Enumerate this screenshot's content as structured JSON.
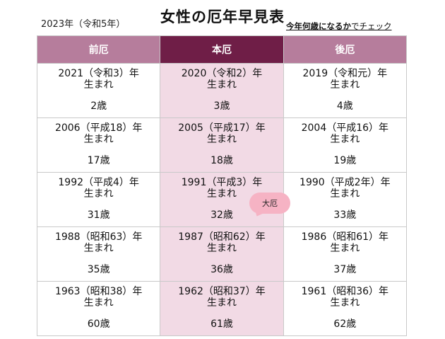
{
  "header": {
    "year_note": "2023年（令和5年）",
    "title": "女性の厄年早見表",
    "subtitle_bold": "今年何歳になるか",
    "subtitle_light": "でチェック"
  },
  "columns": [
    "前厄",
    "本厄",
    "後厄"
  ],
  "rows": [
    [
      {
        "year": "2021（令和3）年",
        "born": "生まれ",
        "age": "2歳"
      },
      {
        "year": "2020（令和2）年",
        "born": "生まれ",
        "age": "3歳"
      },
      {
        "year": "2019（令和元）年",
        "born": "生まれ",
        "age": "4歳"
      }
    ],
    [
      {
        "year": "2006（平成18）年",
        "born": "生まれ",
        "age": "17歳"
      },
      {
        "year": "2005（平成17）年",
        "born": "生まれ",
        "age": "18歳"
      },
      {
        "year": "2004（平成16）年",
        "born": "生まれ",
        "age": "19歳"
      }
    ],
    [
      {
        "year": "1992（平成4）年",
        "born": "生まれ",
        "age": "31歳"
      },
      {
        "year": "1991（平成3）年",
        "born": "生まれ",
        "age": "32歳"
      },
      {
        "year": "1990（平成2年）年",
        "born": "生まれ",
        "age": "33歳"
      }
    ],
    [
      {
        "year": "1988（昭和63）年",
        "born": "生まれ",
        "age": "35歳"
      },
      {
        "year": "1987（昭和62）年",
        "born": "生まれ",
        "age": "36歳"
      },
      {
        "year": "1986（昭和61）年",
        "born": "生まれ",
        "age": "37歳"
      }
    ],
    [
      {
        "year": "1963（昭和38）年",
        "born": "生まれ",
        "age": "60歳"
      },
      {
        "year": "1962（昭和37）年",
        "born": "生まれ",
        "age": "61歳"
      },
      {
        "year": "1961（昭和36）年",
        "born": "生まれ",
        "age": "62歳"
      }
    ]
  ],
  "badge": "大厄",
  "colors": {
    "header_side": "#b67d9c",
    "header_main": "#6f1e47",
    "main_column_fill": "#f2dae5",
    "badge_fill": "#f6b3c4"
  }
}
